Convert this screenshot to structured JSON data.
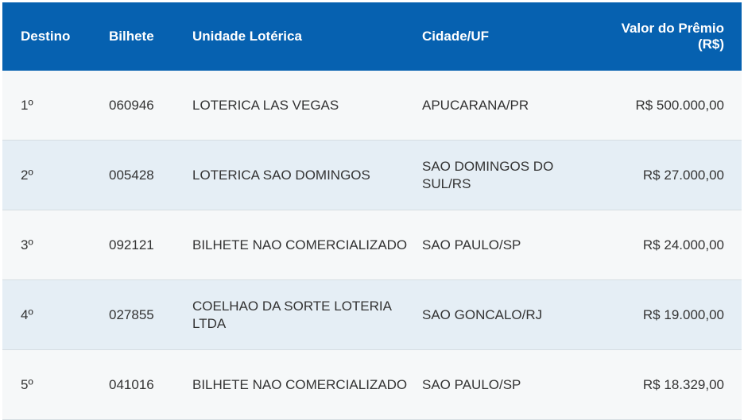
{
  "table": {
    "headers": {
      "destino": "Destino",
      "bilhete": "Bilhete",
      "unidade": "Unidade Lotérica",
      "cidade": "Cidade/UF",
      "valor_line1": "Valor do Prêmio",
      "valor_line2": "(R$)"
    },
    "colors": {
      "header_bg": "#0661b0",
      "row_odd": "#f6f8f9",
      "row_even": "#e5eef5"
    },
    "rows": [
      {
        "destino": "1º",
        "bilhete": "060946",
        "unidade": "LOTERICA LAS VEGAS",
        "cidade": "APUCARANA/PR",
        "valor": "R$ 500.000,00"
      },
      {
        "destino": "2º",
        "bilhete": "005428",
        "unidade": "LOTERICA SAO DOMINGOS",
        "cidade": "SAO DOMINGOS DO SUL/RS",
        "valor": "R$ 27.000,00"
      },
      {
        "destino": "3º",
        "bilhete": "092121",
        "unidade": "BILHETE NAO COMERCIALIZADO",
        "cidade": "SAO PAULO/SP",
        "valor": "R$ 24.000,00"
      },
      {
        "destino": "4º",
        "bilhete": "027855",
        "unidade": "COELHAO DA SORTE LOTERIA LTDA",
        "cidade": "SAO GONCALO/RJ",
        "valor": "R$ 19.000,00"
      },
      {
        "destino": "5º",
        "bilhete": "041016",
        "unidade": "BILHETE NAO COMERCIALIZADO",
        "cidade": "SAO PAULO/SP",
        "valor": "R$ 18.329,00"
      }
    ]
  }
}
